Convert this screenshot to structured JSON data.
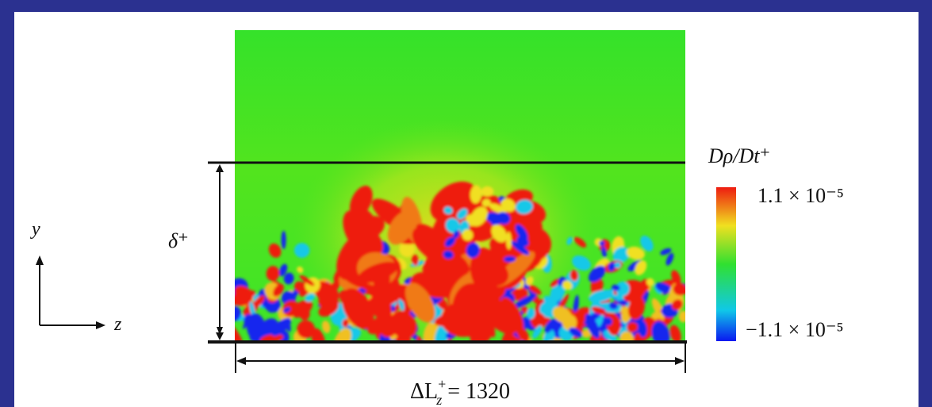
{
  "figure": {
    "colorbar": {
      "title": "Dρ/Dt⁺",
      "max_label": "1.1 × 10⁻⁵",
      "min_label": "−1.1 × 10⁻⁵"
    },
    "axes_icon": {
      "vertical": "y",
      "horizontal": "z"
    },
    "boundary_layer_label": "δ⁺",
    "width_label": {
      "base": "ΔL",
      "sup": "+",
      "sub": "z",
      "rest": " = 1320"
    }
  }
}
